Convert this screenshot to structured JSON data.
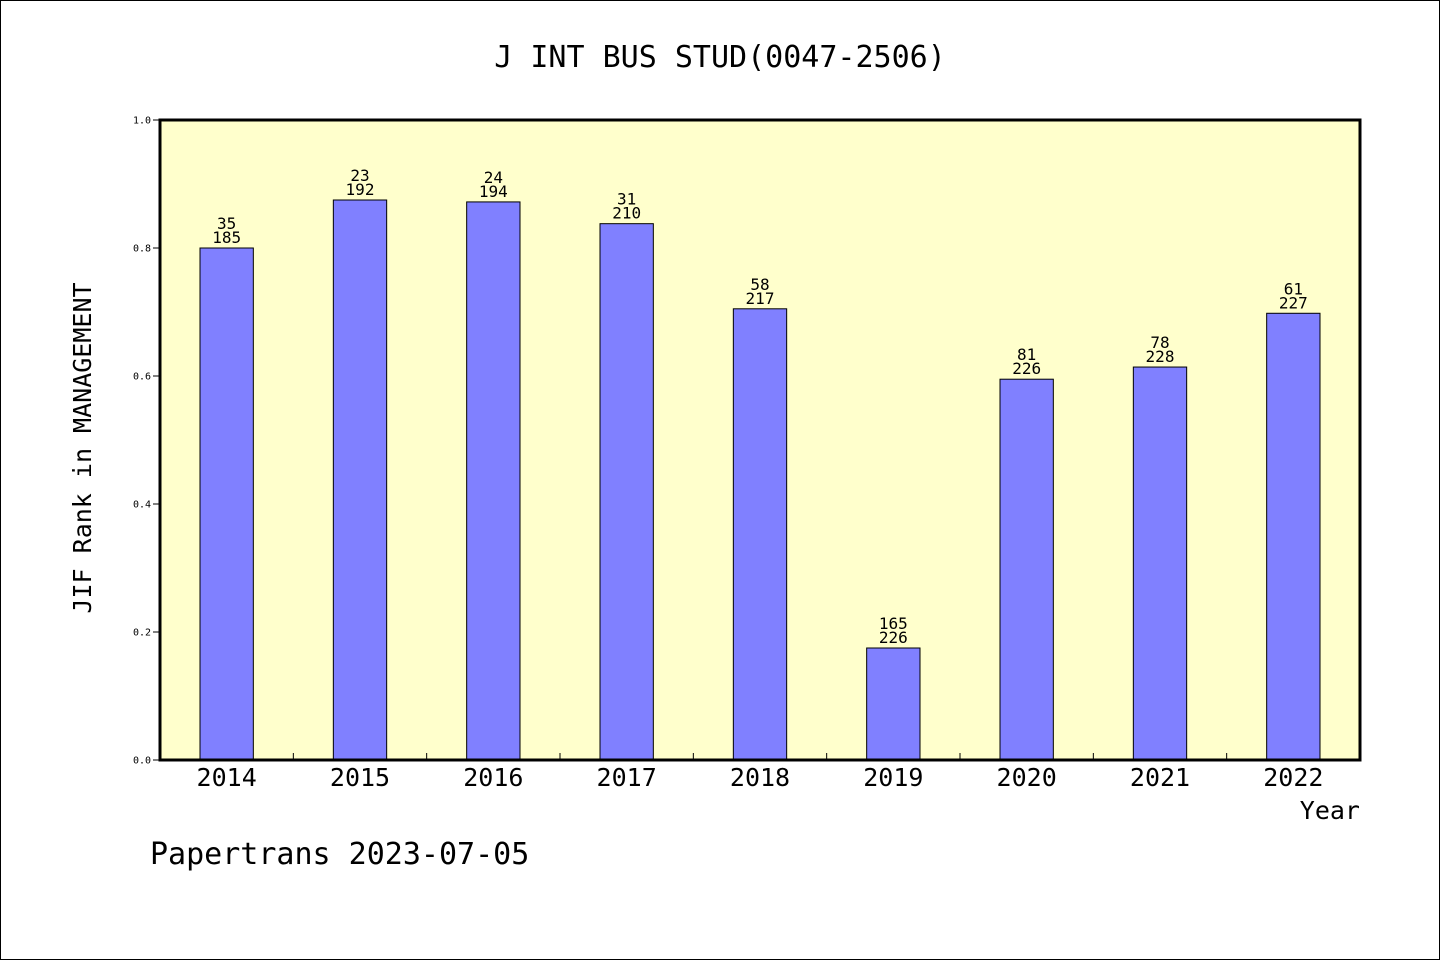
{
  "chart_data": {
    "type": "bar",
    "title": "J INT BUS STUD(0047-2506)",
    "xlabel": "Year",
    "ylabel": "JIF Rank in MANAGEMENT",
    "categories": [
      "2014",
      "2015",
      "2016",
      "2017",
      "2018",
      "2019",
      "2020",
      "2021",
      "2022"
    ],
    "values": [
      0.8,
      0.875,
      0.872,
      0.838,
      0.705,
      0.175,
      0.595,
      0.614,
      0.698
    ],
    "data_labels": [
      [
        "35",
        "185"
      ],
      [
        "23",
        "192"
      ],
      [
        "24",
        "194"
      ],
      [
        "31",
        "210"
      ],
      [
        "58",
        "217"
      ],
      [
        "165",
        "226"
      ],
      [
        "81",
        "226"
      ],
      [
        "78",
        "228"
      ],
      [
        "61",
        "227"
      ]
    ],
    "ylim": [
      0,
      1.0
    ],
    "yticks": [
      "0.0",
      "0.2",
      "0.4",
      "0.6",
      "0.8",
      "1.0"
    ],
    "grid": false,
    "colors": {
      "bar": "#8080FF",
      "bar_edge": "#000000",
      "plot_background": "#FFFFCC",
      "text": "#000000"
    }
  },
  "footer": {
    "credit": "Papertrans 2023-07-05"
  }
}
